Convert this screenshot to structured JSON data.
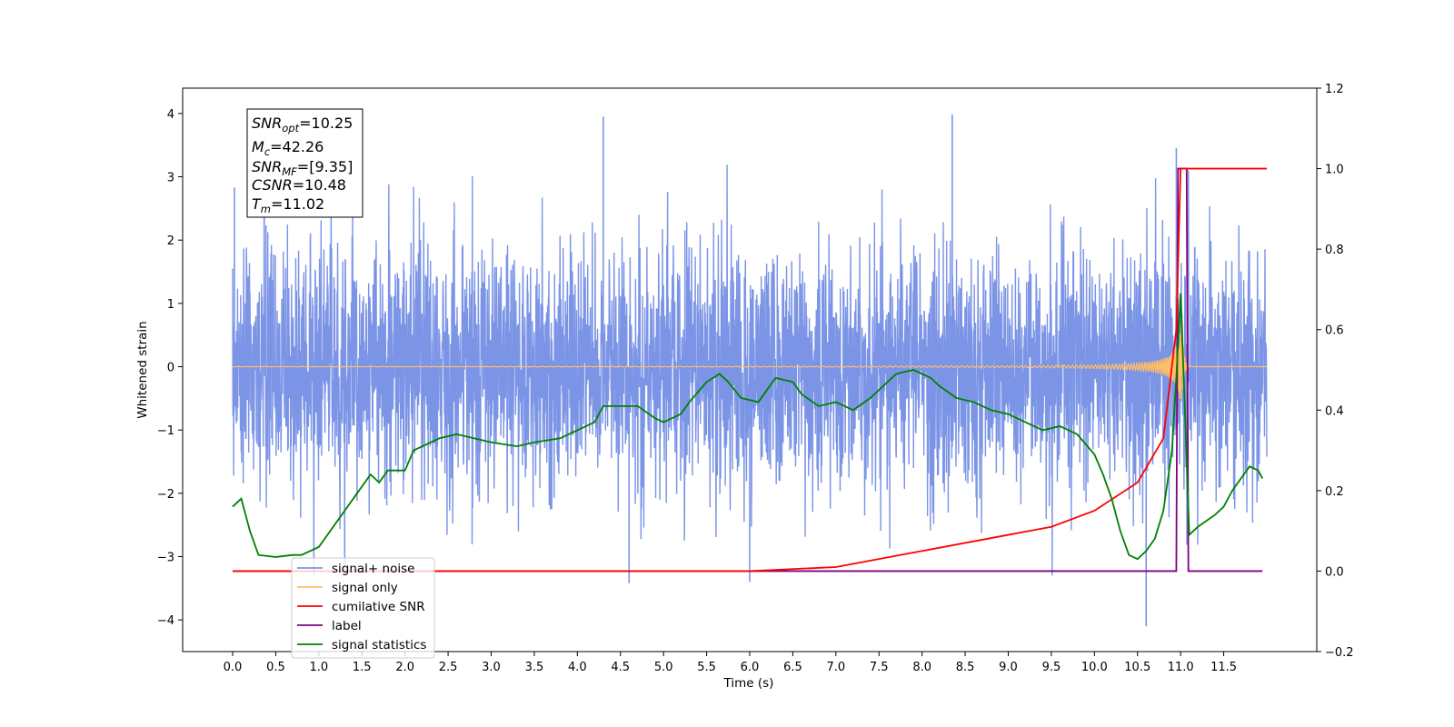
{
  "chart_data": {
    "type": "line",
    "xlabel": "Time (s)",
    "ylabel": "Whitened strain",
    "xlim": [
      -0.58,
      12.58
    ],
    "ylim": [
      -4.5,
      4.4
    ],
    "y2lim": [
      -0.2,
      1.2
    ],
    "x_ticks": [
      "0.0",
      "0.5",
      "1.0",
      "1.5",
      "2.0",
      "2.5",
      "3.0",
      "3.5",
      "4.0",
      "4.5",
      "5.0",
      "5.5",
      "6.0",
      "6.5",
      "7.0",
      "7.5",
      "8.0",
      "8.5",
      "9.0",
      "9.5",
      "10.0",
      "10.5",
      "11.0",
      "11.5"
    ],
    "y_ticks": [
      "−4",
      "−3",
      "−2",
      "−1",
      "0",
      "1",
      "2",
      "3",
      "4"
    ],
    "y2_ticks": [
      "−0.2",
      "0.0",
      "0.2",
      "0.4",
      "0.6",
      "0.8",
      "1.0",
      "1.2"
    ],
    "grid": false,
    "legend_position": "lower-left",
    "annotation": {
      "snr_opt": {
        "sym": "SNR",
        "sub": "opt",
        "value": "=10.25"
      },
      "mc": {
        "sym": "M",
        "sub": "c",
        "value": "=42.26"
      },
      "snr_mf": {
        "sym": "SNR",
        "sub": "MF",
        "value": "=[9.35]"
      },
      "csnr": {
        "sym": "CSNR",
        "value": "=10.48"
      },
      "tm": {
        "sym": "T",
        "sub": "m",
        "value": "=11.02"
      }
    },
    "series": [
      {
        "name": "signal+ noise",
        "color": "#7b94e6",
        "axis": "left",
        "kind": "gaussian-noise",
        "std": 0.95,
        "x_range": [
          0.0,
          12.0
        ],
        "peaks": [
          [
            0.02,
            2.83
          ],
          [
            4.3,
            3.95
          ],
          [
            8.35,
            3.98
          ],
          [
            10.95,
            3.45
          ],
          [
            10.6,
            -4.1
          ],
          [
            4.6,
            -3.42
          ],
          [
            6.0,
            -3.4
          ],
          [
            1.3,
            -3.3
          ]
        ]
      },
      {
        "name": "signal only",
        "color": "#ffbf66",
        "axis": "left",
        "kind": "chirp",
        "merger_time": 11.02,
        "peak_amplitude": 0.85
      },
      {
        "name": "cumilative SNR",
        "color": "#ff0000",
        "axis": "right",
        "points": [
          [
            0.0,
            0.0
          ],
          [
            6.0,
            0.0
          ],
          [
            7.0,
            0.01
          ],
          [
            8.0,
            0.05
          ],
          [
            9.0,
            0.09
          ],
          [
            9.5,
            0.11
          ],
          [
            10.0,
            0.15
          ],
          [
            10.5,
            0.22
          ],
          [
            10.8,
            0.33
          ],
          [
            10.95,
            0.6
          ],
          [
            11.0,
            1.0
          ],
          [
            12.0,
            1.0
          ]
        ]
      },
      {
        "name": "label",
        "color": "#800080",
        "axis": "right",
        "points": [
          [
            0.0,
            0.0
          ],
          [
            10.95,
            0.0
          ],
          [
            10.97,
            1.0
          ],
          [
            11.07,
            1.0
          ],
          [
            11.09,
            0.0
          ],
          [
            11.95,
            0.0
          ]
        ]
      },
      {
        "name": "signal statistics",
        "color": "#008000",
        "axis": "right",
        "points": [
          [
            0.0,
            0.16
          ],
          [
            0.1,
            0.18
          ],
          [
            0.2,
            0.1
          ],
          [
            0.3,
            0.04
          ],
          [
            0.5,
            0.035
          ],
          [
            0.7,
            0.04
          ],
          [
            0.8,
            0.04
          ],
          [
            0.9,
            0.05
          ],
          [
            1.0,
            0.06
          ],
          [
            1.2,
            0.12
          ],
          [
            1.4,
            0.18
          ],
          [
            1.6,
            0.24
          ],
          [
            1.7,
            0.22
          ],
          [
            1.8,
            0.25
          ],
          [
            2.0,
            0.25
          ],
          [
            2.1,
            0.3
          ],
          [
            2.2,
            0.31
          ],
          [
            2.4,
            0.33
          ],
          [
            2.6,
            0.34
          ],
          [
            2.8,
            0.33
          ],
          [
            3.0,
            0.32
          ],
          [
            3.3,
            0.31
          ],
          [
            3.5,
            0.32
          ],
          [
            3.8,
            0.33
          ],
          [
            4.0,
            0.35
          ],
          [
            4.2,
            0.37
          ],
          [
            4.3,
            0.41
          ],
          [
            4.5,
            0.41
          ],
          [
            4.7,
            0.41
          ],
          [
            4.9,
            0.38
          ],
          [
            5.0,
            0.37
          ],
          [
            5.2,
            0.39
          ],
          [
            5.3,
            0.42
          ],
          [
            5.5,
            0.47
          ],
          [
            5.65,
            0.49
          ],
          [
            5.75,
            0.47
          ],
          [
            5.9,
            0.43
          ],
          [
            6.1,
            0.42
          ],
          [
            6.2,
            0.45
          ],
          [
            6.3,
            0.48
          ],
          [
            6.5,
            0.47
          ],
          [
            6.6,
            0.44
          ],
          [
            6.8,
            0.41
          ],
          [
            7.0,
            0.42
          ],
          [
            7.2,
            0.4
          ],
          [
            7.4,
            0.43
          ],
          [
            7.5,
            0.45
          ],
          [
            7.6,
            0.47
          ],
          [
            7.7,
            0.49
          ],
          [
            7.9,
            0.5
          ],
          [
            8.1,
            0.48
          ],
          [
            8.2,
            0.46
          ],
          [
            8.4,
            0.43
          ],
          [
            8.6,
            0.42
          ],
          [
            8.8,
            0.4
          ],
          [
            9.0,
            0.39
          ],
          [
            9.2,
            0.37
          ],
          [
            9.4,
            0.35
          ],
          [
            9.6,
            0.36
          ],
          [
            9.8,
            0.34
          ],
          [
            10.0,
            0.29
          ],
          [
            10.1,
            0.24
          ],
          [
            10.2,
            0.18
          ],
          [
            10.3,
            0.1
          ],
          [
            10.4,
            0.04
          ],
          [
            10.5,
            0.03
          ],
          [
            10.6,
            0.05
          ],
          [
            10.7,
            0.08
          ],
          [
            10.8,
            0.15
          ],
          [
            10.9,
            0.3
          ],
          [
            10.95,
            0.48
          ],
          [
            11.0,
            0.69
          ],
          [
            11.05,
            0.4
          ],
          [
            11.1,
            0.09
          ],
          [
            11.2,
            0.11
          ],
          [
            11.4,
            0.14
          ],
          [
            11.5,
            0.16
          ],
          [
            11.6,
            0.2
          ],
          [
            11.7,
            0.23
          ],
          [
            11.8,
            0.26
          ],
          [
            11.9,
            0.25
          ],
          [
            11.95,
            0.23
          ]
        ]
      }
    ]
  }
}
